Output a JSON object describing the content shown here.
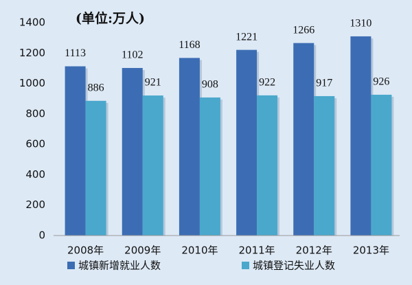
{
  "chart_data": {
    "type": "bar",
    "subtitle": "(单位:万人)",
    "categories": [
      "2008年",
      "2009年",
      "2010年",
      "2011年",
      "2012年",
      "2013年"
    ],
    "series": [
      {
        "name": "城镇新增就业人数",
        "color": "#3c6db4",
        "values": [
          1113,
          1102,
          1168,
          1221,
          1266,
          1310
        ]
      },
      {
        "name": "城镇登记失业人数",
        "color": "#4aa8cc",
        "values": [
          886,
          921,
          908,
          922,
          917,
          926
        ]
      }
    ],
    "ylim": [
      0,
      1400
    ],
    "yticks": [
      0,
      200,
      400,
      600,
      800,
      1000,
      1200,
      1400
    ],
    "grid": false
  }
}
